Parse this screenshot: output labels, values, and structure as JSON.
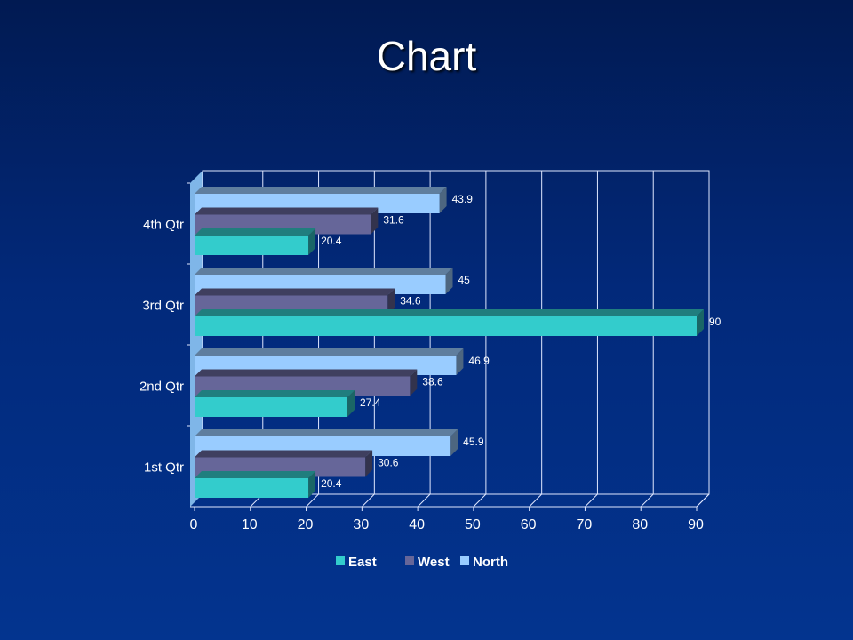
{
  "slide": {
    "title": "Chart"
  },
  "colors": {
    "East": "#33cccc",
    "West": "#666699",
    "North": "#99ccff",
    "gridline": "#dfe7ff",
    "wall_side": "#7fb6e8"
  },
  "chart_data": {
    "type": "bar",
    "orientation": "horizontal",
    "style": "3d-clustered",
    "title": "",
    "categories": [
      "1st Qtr",
      "2nd Qtr",
      "3rd Qtr",
      "4th Qtr"
    ],
    "series": [
      {
        "name": "East",
        "values": [
          20.4,
          27.4,
          90,
          20.4
        ]
      },
      {
        "name": "West",
        "values": [
          30.6,
          38.6,
          34.6,
          31.6
        ]
      },
      {
        "name": "North",
        "values": [
          45.9,
          46.9,
          45,
          43.9
        ]
      }
    ],
    "xlim": [
      0,
      90
    ],
    "xticks": [
      0,
      10,
      20,
      30,
      40,
      50,
      60,
      70,
      80,
      90
    ],
    "xlabel": "",
    "ylabel": "",
    "grid": true,
    "data_labels": true,
    "legend": {
      "position": "bottom",
      "entries": [
        "East",
        "West",
        "North"
      ]
    }
  }
}
